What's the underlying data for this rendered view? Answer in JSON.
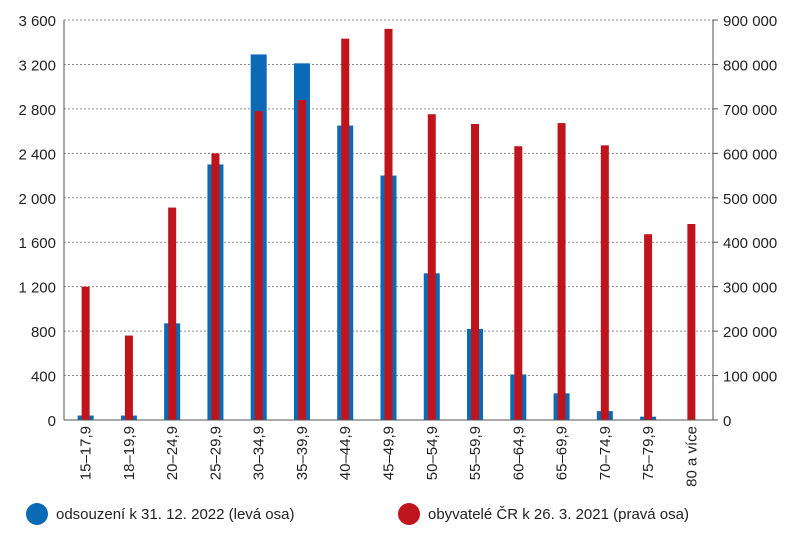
{
  "chart_data": {
    "type": "bar",
    "categories": [
      "15–17,9",
      "18–19,9",
      "20–24,9",
      "25–29,9",
      "30–34,9",
      "35–39,9",
      "40–44,9",
      "45–49,9",
      "50–54,9",
      "55–59,9",
      "60–64,9",
      "65–69,9",
      "70–74,9",
      "75–79,9",
      "80 a více"
    ],
    "series": [
      {
        "name": "odsouzení k 31. 12. 2022 (levá osa)",
        "axis": "left",
        "color": "#0a6ab5",
        "values": [
          40,
          40,
          870,
          2300,
          3290,
          3210,
          2650,
          2200,
          1320,
          820,
          410,
          240,
          80,
          30,
          0
        ]
      },
      {
        "name": "obyvatelé ČR k 26. 3. 2021 (pravá osa)",
        "axis": "right",
        "color": "#c0141c",
        "values": [
          300000,
          190000,
          478000,
          600000,
          695000,
          720000,
          858000,
          880000,
          688000,
          666000,
          616000,
          668000,
          618000,
          418000,
          441000
        ]
      }
    ],
    "y_left": {
      "ylim": [
        0,
        3600
      ],
      "ticks": [
        0,
        400,
        800,
        1200,
        1600,
        2000,
        2400,
        2800,
        3200,
        3600
      ],
      "tick_labels": [
        "0",
        "400",
        "800",
        "1 200",
        "1 600",
        "2 000",
        "2 400",
        "2 800",
        "3 200",
        "3 600"
      ]
    },
    "y_right": {
      "ylim": [
        0,
        900000
      ],
      "ticks": [
        0,
        100000,
        200000,
        300000,
        400000,
        500000,
        600000,
        700000,
        800000,
        900000
      ],
      "tick_labels": [
        "0",
        "100 000",
        "200 000",
        "300 000",
        "400 000",
        "500 000",
        "600 000",
        "700 000",
        "800 000",
        "900 000"
      ]
    },
    "grid": true,
    "legend_position": "bottom",
    "title": "",
    "xlabel": "",
    "ylabel": ""
  },
  "legend": {
    "items": [
      {
        "label": "odsouzení k 31. 12. 2022 (levá osa)",
        "color": "#0a6ab5"
      },
      {
        "label": "obyvatelé ČR k 26. 3. 2021 (pravá osa)",
        "color": "#c0141c"
      }
    ]
  }
}
